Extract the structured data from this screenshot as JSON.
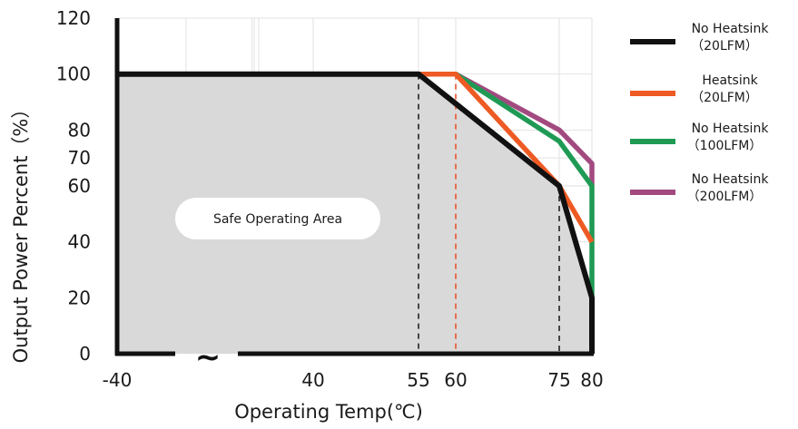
{
  "chart_data": {
    "type": "line",
    "title": "",
    "xlabel": "Operating Temp(℃)",
    "ylabel": "Output Power Percent（%）",
    "xlim": [
      -40,
      80
    ],
    "ylim": [
      0,
      120
    ],
    "x_ticks": [
      -40,
      40,
      55,
      60,
      75,
      80
    ],
    "y_ticks": [
      0,
      20,
      40,
      60,
      70,
      80,
      100,
      120
    ],
    "axis_break_symbol": "~",
    "grid": true,
    "legend_position": "right",
    "annotation": "Safe Operating Area",
    "reference_lines": [
      {
        "x": 55,
        "y": 100,
        "color": "#222222"
      },
      {
        "x": 60,
        "y": 100,
        "color": "#e8532a"
      },
      {
        "x": 75,
        "y": 60,
        "color": "#222222"
      }
    ],
    "series": [
      {
        "name_line1": "No Heatsink",
        "name_line2": "（20LFM）",
        "color": "#111111",
        "points": [
          [
            -40,
            100
          ],
          [
            55,
            100
          ],
          [
            75,
            60
          ],
          [
            80,
            20
          ],
          [
            80,
            0
          ]
        ]
      },
      {
        "name_line1": "Heatsink",
        "name_line2": "（20LFM）",
        "color": "#ee5a24",
        "points": [
          [
            55,
            100
          ],
          [
            60,
            100
          ],
          [
            75,
            60
          ],
          [
            80,
            40
          ]
        ]
      },
      {
        "name_line1": "No Heatsink",
        "name_line2": "（100LFM）",
        "color": "#1f9a55",
        "points": [
          [
            59,
            100
          ],
          [
            60,
            100
          ],
          [
            75,
            76
          ],
          [
            80,
            60
          ],
          [
            80,
            20
          ]
        ]
      },
      {
        "name_line1": "No Heatsink",
        "name_line2": "（200LFM）",
        "color": "#a24a80",
        "points": [
          [
            60,
            100
          ],
          [
            75,
            80
          ],
          [
            80,
            68
          ],
          [
            80,
            60
          ]
        ]
      }
    ]
  }
}
